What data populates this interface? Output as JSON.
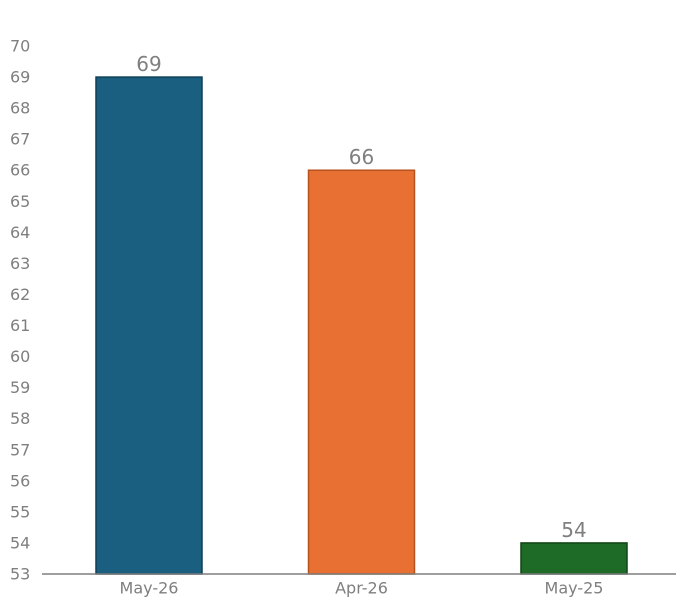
{
  "chart_data": {
    "type": "bar",
    "title": "",
    "xlabel": "",
    "ylabel": "",
    "categories": [
      "May-26",
      "Apr-26",
      "May-25"
    ],
    "values": [
      69,
      66,
      54
    ],
    "data_labels": [
      "69",
      "66",
      "54"
    ],
    "colors": [
      "#1a5f80",
      "#e87032",
      "#1e6b28"
    ],
    "edge_colors": [
      "#0f3f57",
      "#b5531f",
      "#0f4414"
    ],
    "ylim": [
      53,
      70
    ],
    "yticks": [
      53,
      54,
      55,
      56,
      57,
      58,
      59,
      60,
      61,
      62,
      63,
      64,
      65,
      66,
      67,
      68,
      69,
      70
    ],
    "grid": false,
    "legend": "none",
    "axis_color": "#7f7f7f",
    "label_color": "#7f7f7f"
  }
}
